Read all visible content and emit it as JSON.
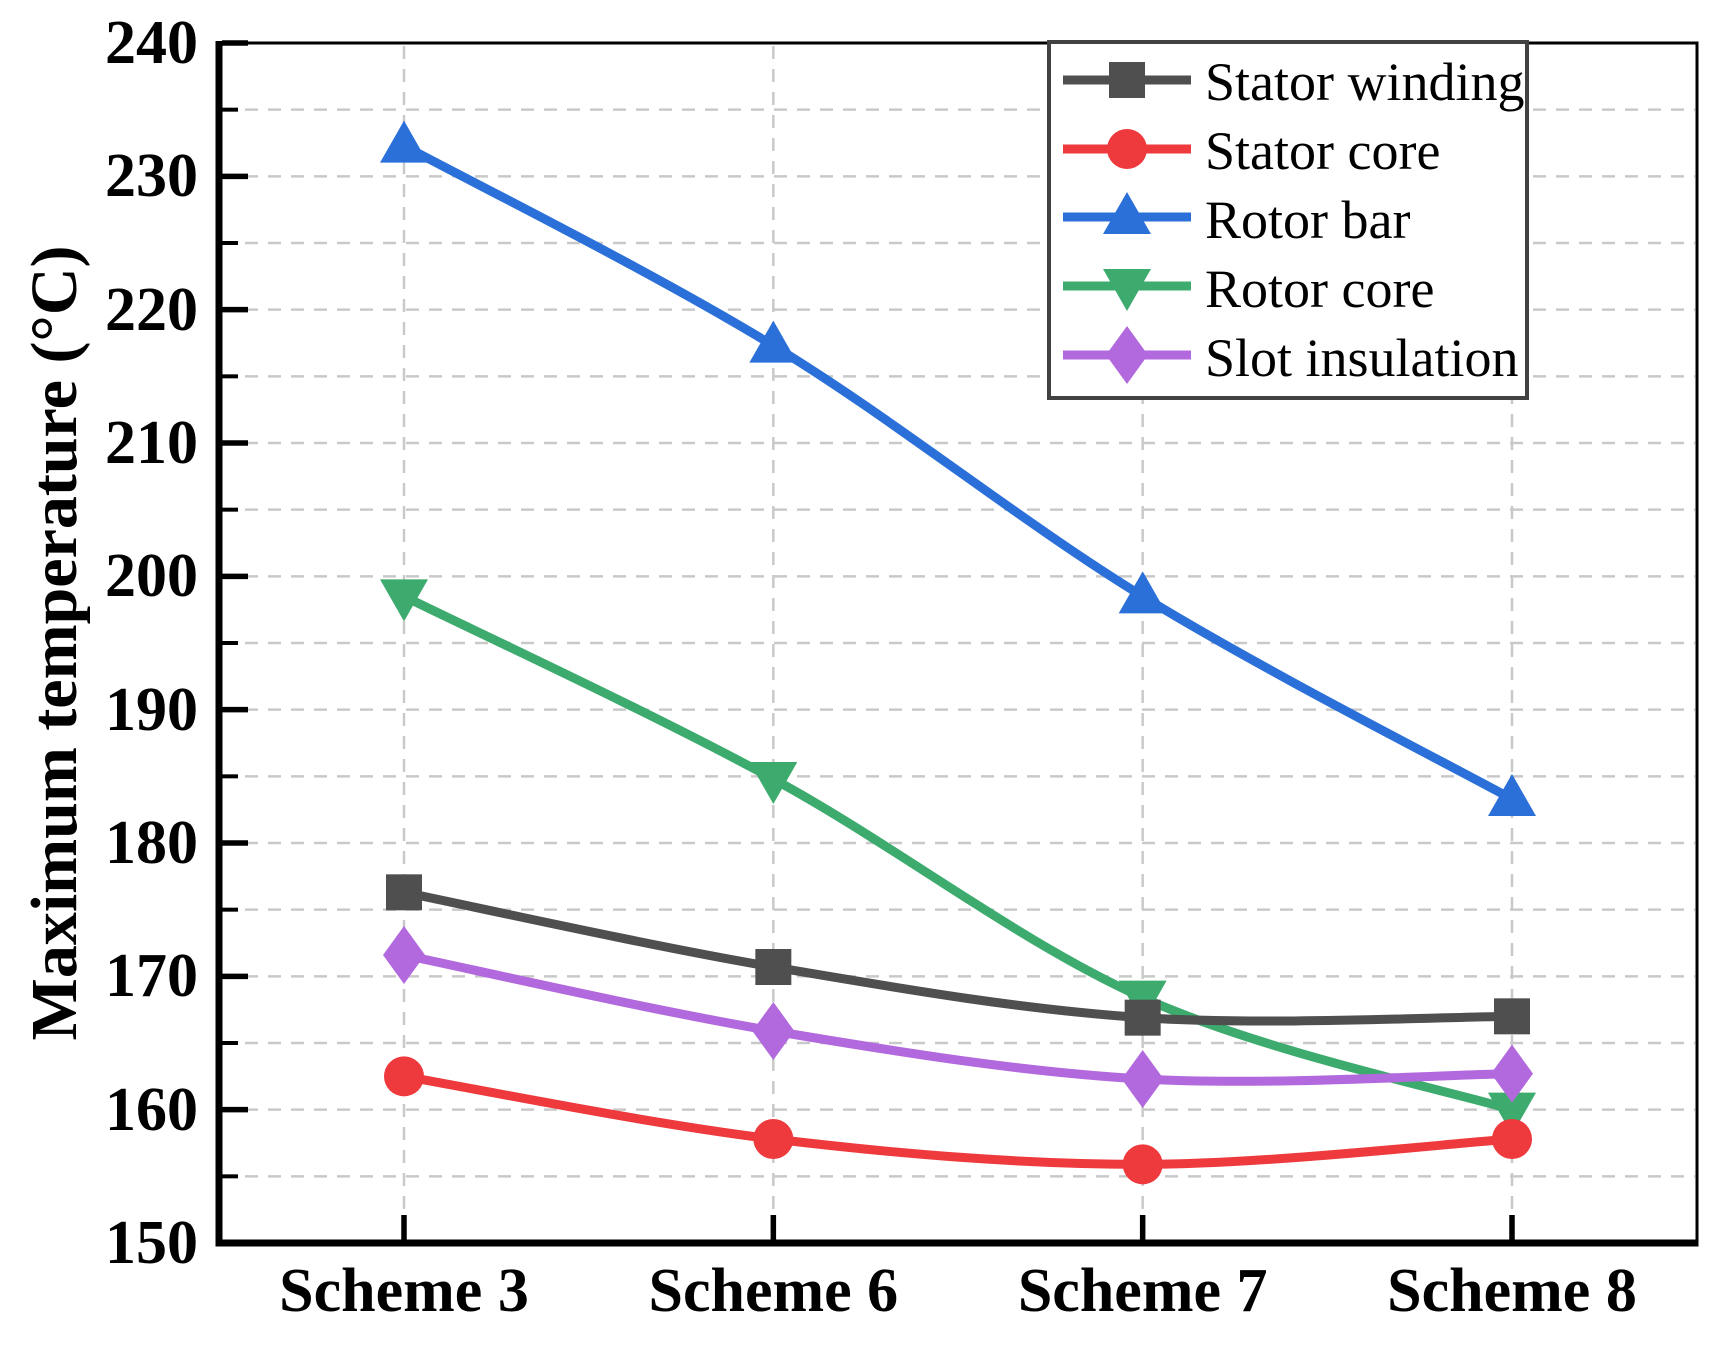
{
  "chart_data": {
    "type": "line",
    "title": "",
    "xlabel": "",
    "ylabel": "Maximum temperature (°C)",
    "categories": [
      "Scheme 3",
      "Scheme 6",
      "Scheme 7",
      "Scheme 8"
    ],
    "ylim": [
      150,
      240
    ],
    "yticks": [
      150,
      160,
      170,
      180,
      190,
      200,
      210,
      220,
      230,
      240
    ],
    "ytick_minor_step": 5,
    "grid": "dashed, horizontal every 5 and vertical at each category",
    "grid_color": "#c9c9c9",
    "axis_color": "#000000",
    "legend_position": "top-right",
    "legend_border_color": "#424242",
    "series": [
      {
        "name": "Stator winding",
        "color": "#4f4f4f",
        "marker": "square",
        "values": [
          176.3,
          170.7,
          166.9,
          167.0
        ]
      },
      {
        "name": "Stator core",
        "color": "#ee393d",
        "marker": "circle",
        "values": [
          162.5,
          157.8,
          155.9,
          157.8
        ]
      },
      {
        "name": "Rotor bar",
        "color": "#2b70d9",
        "marker": "triangle-up",
        "values": [
          232.3,
          217.3,
          198.5,
          183.3
        ]
      },
      {
        "name": "Rotor core",
        "color": "#3dab6e",
        "marker": "triangle-down",
        "values": [
          198.5,
          184.8,
          168.4,
          160.0
        ]
      },
      {
        "name": "Slot insulation",
        "color": "#b269dd",
        "marker": "diamond",
        "values": [
          171.6,
          165.9,
          162.3,
          162.7
        ]
      }
    ]
  }
}
